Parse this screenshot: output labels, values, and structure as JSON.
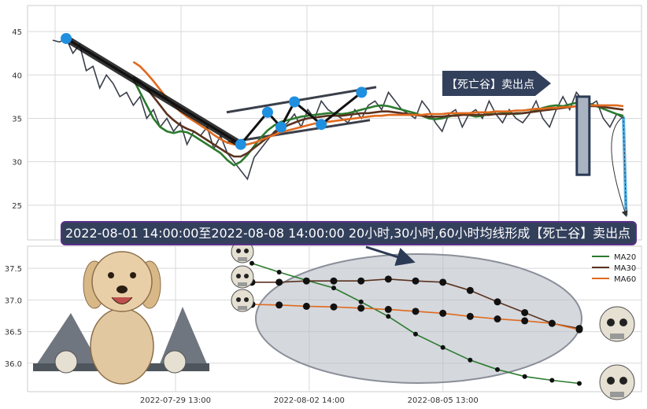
{
  "chart_data": [
    {
      "type": "line",
      "title": "",
      "xlabel": "",
      "ylabel": "",
      "ylim": [
        21,
        48
      ],
      "yticks": [
        25,
        30,
        35,
        40,
        45
      ],
      "grid": true,
      "series": [
        {
          "values": [
            44.0,
            43.8,
            44.2,
            42.5,
            43.5,
            40.5,
            41.0,
            38.5,
            40.0,
            39.0,
            37.5,
            38.0,
            36.5,
            37.5,
            35.0,
            36.0,
            34.0,
            35.0,
            33.5,
            34.5,
            32.0,
            33.5,
            33.0,
            34.0,
            31.5,
            33.0,
            31.0,
            30.0,
            29.0,
            28.0,
            30.5,
            31.5,
            32.5,
            33.5,
            34.0,
            34.5,
            35.5,
            34.0,
            36.0,
            35.0,
            37.0,
            36.0,
            35.5,
            35.0,
            34.5,
            36.0,
            35.0,
            36.5,
            37.0,
            36.0,
            38.0,
            37.0,
            36.0,
            35.5,
            35.0,
            37.0,
            36.0,
            34.5,
            33.5,
            35.5,
            36.0,
            34.0,
            35.5,
            36.0,
            35.0,
            37.0,
            35.5,
            34.5,
            36.0,
            35.0,
            34.5,
            35.5,
            37.0,
            35.0,
            34.0,
            36.0,
            37.5,
            36.0,
            38.0,
            37.0,
            36.5,
            37.0,
            35.0,
            34.0,
            35.5,
            35.0
          ]
        },
        {
          "name": "MA20",
          "color": "#2b7a2e",
          "values": [
            null,
            null,
            null,
            null,
            null,
            null,
            null,
            null,
            null,
            null,
            null,
            null,
            39.5,
            38.0,
            36.5,
            35.0,
            34.0,
            33.5,
            33.3,
            33.5,
            33.4,
            33.0,
            32.5,
            32.0,
            31.5,
            31.0,
            30.2,
            29.6,
            30.0,
            30.8,
            31.8,
            32.8,
            33.6,
            34.2,
            34.6,
            34.8,
            35.0,
            35.2,
            35.3,
            35.4,
            35.5,
            35.6,
            35.6,
            35.5,
            35.6,
            35.8,
            36.0,
            36.2,
            36.4,
            36.5,
            36.4,
            36.2,
            36.0,
            35.8,
            35.6,
            35.3,
            35.0,
            34.9,
            35.0,
            35.2,
            35.4,
            35.5,
            35.4,
            35.2,
            35.3,
            35.6,
            35.8,
            35.7,
            35.6,
            35.5,
            35.6,
            35.7,
            35.9,
            36.2,
            36.4,
            36.5,
            36.4,
            36.6,
            36.8,
            36.9,
            36.7,
            36.4,
            36.1,
            35.8,
            35.5,
            35.3
          ]
        },
        {
          "name": "MA30",
          "color": "#5a3220",
          "values": [
            null,
            null,
            null,
            null,
            null,
            null,
            null,
            null,
            null,
            null,
            null,
            null,
            39.8,
            39.2,
            38.5,
            37.5,
            36.5,
            35.5,
            34.8,
            34.2,
            33.8,
            33.5,
            33.0,
            32.5,
            32.0,
            31.5,
            31.0,
            30.6,
            30.6,
            31.0,
            31.6,
            32.2,
            32.8,
            33.3,
            33.8,
            34.2,
            34.5,
            34.8,
            35.0,
            35.1,
            35.2,
            35.3,
            35.3,
            35.3,
            35.4,
            35.5,
            35.6,
            35.6,
            35.7,
            35.8,
            35.8,
            35.7,
            35.6,
            35.5,
            35.4,
            35.3,
            35.2,
            35.2,
            35.2,
            35.3,
            35.3,
            35.4,
            35.4,
            35.4,
            35.4,
            35.4,
            35.5,
            35.5,
            35.5,
            35.6,
            35.6,
            35.7,
            35.8,
            35.9,
            36.0,
            36.1,
            36.2,
            36.3,
            36.4,
            36.4,
            36.4,
            36.4,
            36.3,
            36.2,
            36.1,
            36.0
          ]
        },
        {
          "name": "MA60",
          "color": "#e06a1e",
          "values": [
            null,
            null,
            null,
            null,
            null,
            null,
            null,
            null,
            null,
            null,
            null,
            null,
            41.5,
            41.0,
            40.2,
            39.3,
            38.3,
            37.3,
            36.5,
            35.8,
            35.2,
            34.7,
            34.2,
            33.7,
            33.1,
            32.6,
            32.2,
            32.0,
            31.9,
            32.0,
            32.2,
            32.5,
            32.8,
            33.1,
            33.4,
            33.6,
            33.8,
            34.0,
            34.2,
            34.4,
            34.5,
            34.6,
            34.7,
            34.8,
            34.9,
            35.0,
            35.1,
            35.2,
            35.3,
            35.3,
            35.4,
            35.4,
            35.4,
            35.4,
            35.4,
            35.4,
            35.5,
            35.5,
            35.5,
            35.6,
            35.6,
            35.6,
            35.6,
            35.7,
            35.7,
            35.7,
            35.8,
            35.8,
            35.8,
            35.9,
            35.9,
            36.0,
            36.1,
            36.1,
            36.2,
            36.2,
            36.3,
            36.3,
            36.4,
            36.4,
            36.5,
            36.5,
            36.5,
            36.5,
            36.5,
            36.4
          ]
        }
      ],
      "pivots": [
        [
          2,
          44.2
        ],
        [
          28,
          32.0
        ],
        [
          32,
          35.7
        ],
        [
          34,
          34.0
        ],
        [
          36,
          36.9
        ],
        [
          40,
          34.3
        ],
        [
          46,
          38.0
        ]
      ],
      "projection_to": [
        86,
        23.8
      ],
      "banner": "【死亡谷】卖出点"
    },
    {
      "type": "line",
      "xlabel": "",
      "ylabel": "",
      "ylim": [
        35.55,
        37.85
      ],
      "yticks": [
        36.0,
        36.5,
        37.0,
        37.5
      ],
      "xticks": [
        {
          "at": -2.8,
          "label": "2022-07-29 13:00"
        },
        {
          "at": 2.1,
          "label": "2022-08-02 14:00"
        },
        {
          "at": 7.0,
          "label": "2022-08-05 13:00"
        }
      ],
      "grid": true,
      "legend": "top-right",
      "series": [
        {
          "name": "MA20",
          "color": "#2b7a2e",
          "values": [
            37.58,
            37.44,
            37.31,
            37.19,
            36.97,
            36.74,
            36.46,
            36.25,
            36.05,
            35.9,
            35.79,
            35.73,
            35.68
          ]
        },
        {
          "name": "MA30",
          "color": "#5a3220",
          "values": [
            37.28,
            37.28,
            37.3,
            37.3,
            37.3,
            37.33,
            37.3,
            37.28,
            37.15,
            36.97,
            36.8,
            36.63,
            36.55
          ]
        },
        {
          "name": "MA60",
          "color": "#e06a1e",
          "values": [
            36.93,
            36.92,
            36.9,
            36.89,
            36.87,
            36.85,
            36.82,
            36.79,
            36.74,
            36.7,
            36.67,
            36.63,
            36.53
          ]
        }
      ]
    }
  ],
  "annotation": "2022-08-01 14:00:00至2022-08-08 14:00:00 20小时,30小时,60小时均线形成【死亡谷】卖出点"
}
